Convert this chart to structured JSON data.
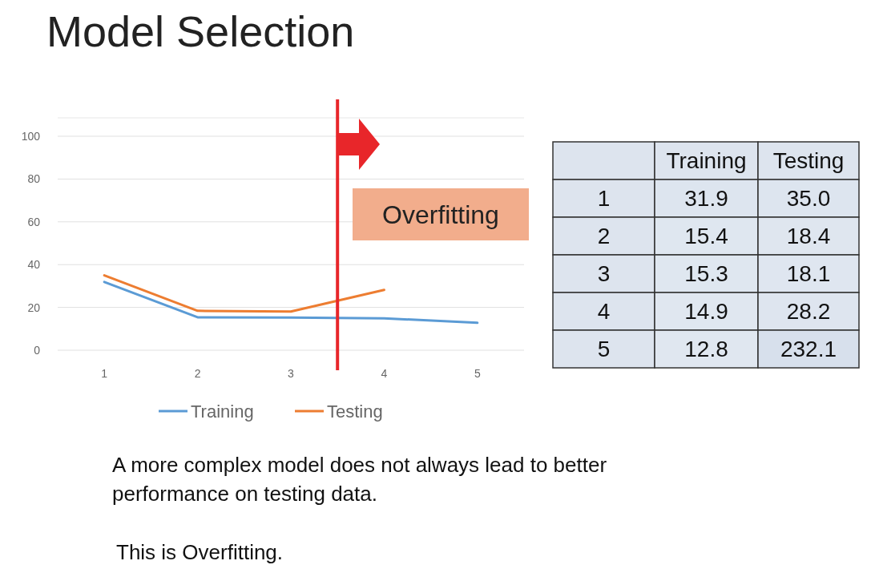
{
  "chart_data": [
    {
      "type": "line",
      "title": "Model Selection",
      "x": [
        1,
        2,
        3,
        4,
        5
      ],
      "xlim": [
        0.5,
        5.5
      ],
      "xticks": [
        1,
        2,
        3,
        4,
        5
      ],
      "ylim": [
        0,
        100
      ],
      "yticks": [
        0,
        20,
        40,
        60,
        80,
        100
      ],
      "grid": "y",
      "legend": "bottom",
      "series": [
        {
          "name": "Training",
          "color": "#5b9bd5",
          "values": [
            31.9,
            15.4,
            15.3,
            14.9,
            12.8
          ]
        },
        {
          "name": "Testing",
          "color": "#ed7d31",
          "values": [
            35.0,
            18.4,
            18.1,
            28.2,
            null
          ]
        }
      ],
      "ref_lines": [
        {
          "axis": "x",
          "value": 3.5,
          "color": "#e8262a"
        }
      ],
      "annotations": [
        "Overfitting",
        "A more complex model does not always lead to better performance on testing data.",
        "This is Overfitting."
      ]
    },
    {
      "type": "heatmap",
      "categories": [
        "Training",
        "Testing"
      ],
      "y_categories": [
        "1",
        "2",
        "3",
        "4",
        "5"
      ],
      "cells": [
        [
          31.9,
          35.0
        ],
        [
          15.4,
          18.4
        ],
        [
          15.3,
          18.1
        ],
        [
          14.9,
          28.2
        ],
        [
          12.8,
          232.1
        ]
      ],
      "cell_labels": [
        [
          "31.9",
          "35.0"
        ],
        [
          "15.4",
          "18.4"
        ],
        [
          "15.3",
          "18.1"
        ],
        [
          "14.9",
          "28.2"
        ],
        [
          "12.8",
          "232.1"
        ]
      ]
    }
  ]
}
